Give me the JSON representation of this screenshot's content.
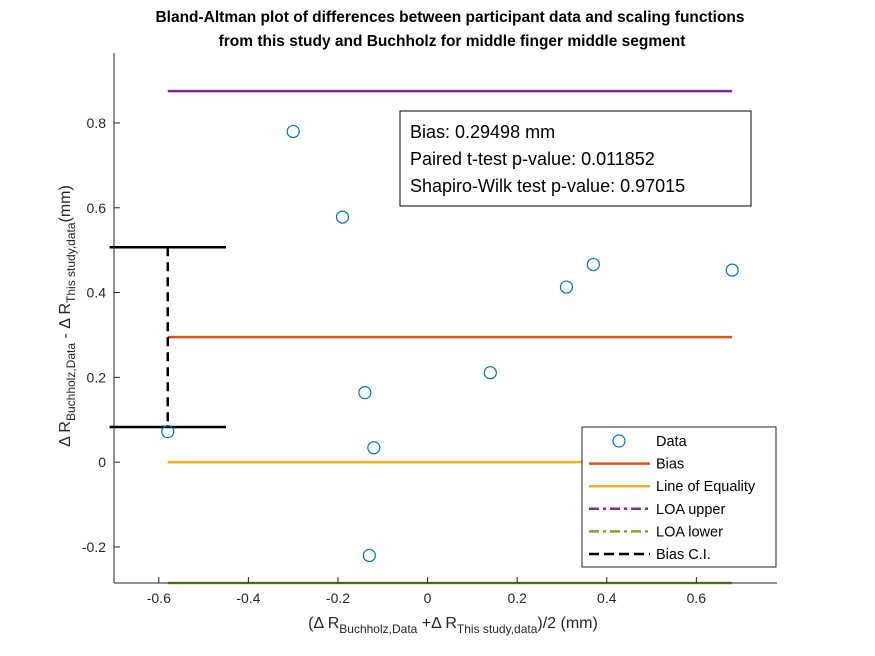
{
  "chart_data": {
    "type": "scatter",
    "title_lines": [
      "Bland-Altman plot of differences between participant data and scaling functions",
      "from this study and Buchholz for middle finger middle segment"
    ],
    "xlabel": {
      "prefix": "(Δ R",
      "sub1": "Buchholz,Data",
      "middle": " +Δ R",
      "sub2": "This study,data",
      "suffix": ")/2 (mm)"
    },
    "ylabel": {
      "prefix": "Δ R",
      "sub1": "Buchholz,Data",
      "middle": " - Δ R",
      "sub2": "This study,data",
      "suffix": "(mm)"
    },
    "xlim": [
      -0.7,
      0.78
    ],
    "ylim": [
      -0.285,
      0.965
    ],
    "xticks": [
      -0.6,
      -0.4,
      -0.2,
      0,
      0.2,
      0.4,
      0.6
    ],
    "xtick_labels": [
      "-0.6",
      "-0.4",
      "-0.2",
      "0",
      "0.2",
      "0.4",
      "0.6"
    ],
    "yticks": [
      -0.2,
      0,
      0.2,
      0.4,
      0.6,
      0.8
    ],
    "ytick_labels": [
      "-0.2",
      "0",
      "0.2",
      "0.4",
      "0.6",
      "0.8"
    ],
    "grid": false,
    "points": [
      {
        "x": -0.58,
        "y": 0.072
      },
      {
        "x": -0.3,
        "y": 0.78
      },
      {
        "x": -0.19,
        "y": 0.578
      },
      {
        "x": -0.14,
        "y": 0.164
      },
      {
        "x": -0.13,
        "y": -0.22
      },
      {
        "x": -0.12,
        "y": 0.034
      },
      {
        "x": 0.14,
        "y": 0.211
      },
      {
        "x": 0.31,
        "y": 0.413
      },
      {
        "x": 0.37,
        "y": 0.466
      },
      {
        "x": 0.68,
        "y": 0.453
      }
    ],
    "lines": {
      "x_range": [
        -0.58,
        0.68
      ],
      "bias": 0.29498,
      "equality": 0,
      "loa_upper": 0.875,
      "loa_lower": -0.285
    },
    "bias_ci": {
      "x": -0.58,
      "x_whisker": [
        -0.71,
        -0.45
      ],
      "upper": 0.507,
      "lower": 0.083
    },
    "stats_box": [
      "Bias: 0.29498 mm",
      "Paired t-test p-value: 0.011852",
      "Shapiro-Wilk test p-value: 0.97015"
    ],
    "legend": {
      "placement": "bottom-right",
      "entries": [
        {
          "label": "Data",
          "style": "marker"
        },
        {
          "label": "Bias",
          "style": "solid",
          "color": "#D95319"
        },
        {
          "label": "Line of Equality",
          "style": "solid",
          "color": "#EDB120"
        },
        {
          "label": "LOA upper",
          "style": "dashdot",
          "color": "#7E2F8E"
        },
        {
          "label": "LOA lower",
          "style": "dashdot",
          "color": "#77AC30"
        },
        {
          "label": "Bias C.I.",
          "style": "dashed",
          "color": "#000000"
        }
      ]
    },
    "colors": {
      "marker": "#0072BD",
      "bias": "#D95319",
      "equality": "#EDB120",
      "loa_upper": "#7E2F8E",
      "loa_lower": "#77AC30",
      "ci": "#000000",
      "axis": "#262626"
    }
  }
}
